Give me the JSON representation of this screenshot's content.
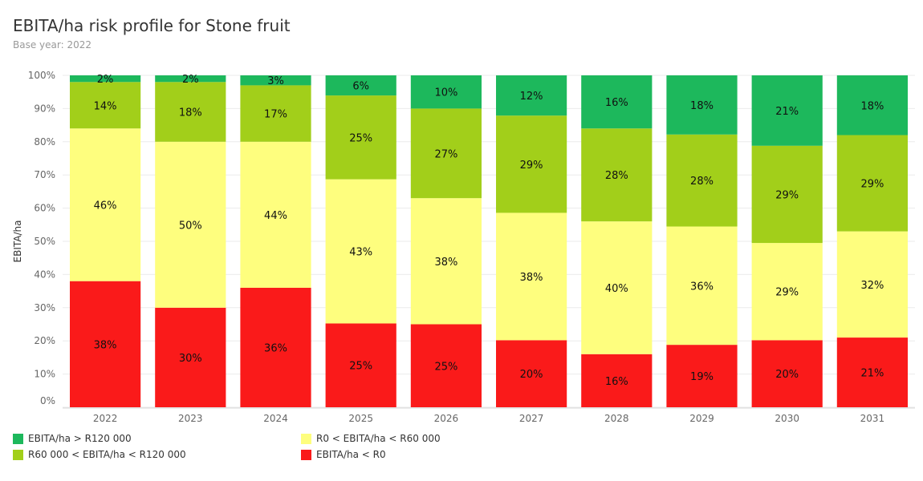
{
  "title": "EBITA/ha risk profile for Stone fruit",
  "subtitle": "Base year: 2022",
  "colors": {
    "band_above_120k": "#1db85c",
    "band_60k_120k": "#a2cf1a",
    "band_0_60k": "#fefe7e",
    "band_below_0": "#fa1a1a",
    "gridline": "#ebebeb",
    "axis_text": "#666666"
  },
  "legend": [
    {
      "label": "EBITA/ha > R120 000",
      "color": "#1db85c"
    },
    {
      "label": "R0 < EBITA/ha < R60 000",
      "color": "#fefe7e"
    },
    {
      "label": "R60 000 < EBITA/ha < R120 000",
      "color": "#a2cf1a"
    },
    {
      "label": "EBITA/ha < R0",
      "color": "#fa1a1a"
    }
  ],
  "chart_data": {
    "type": "bar",
    "stacked": true,
    "normalized": true,
    "ylabel": "EBITA/ha",
    "xlabel": "",
    "ylim": [
      0,
      100
    ],
    "yticks": [
      "0%",
      "10%",
      "20%",
      "30%",
      "40%",
      "50%",
      "60%",
      "70%",
      "80%",
      "90%",
      "100%"
    ],
    "categories": [
      "2022",
      "2023",
      "2024",
      "2025",
      "2026",
      "2027",
      "2028",
      "2029",
      "2030",
      "2031"
    ],
    "series": [
      {
        "name": "EBITA/ha < R0",
        "color": "#fa1a1a",
        "values": [
          38,
          30,
          36,
          25,
          25,
          20,
          16,
          19,
          20,
          21
        ]
      },
      {
        "name": "R0 < EBITA/ha < R60 000",
        "color": "#fefe7e",
        "values": [
          46,
          50,
          44,
          43,
          38,
          38,
          40,
          36,
          29,
          32
        ]
      },
      {
        "name": "R60 000 < EBITA/ha < R120 000",
        "color": "#a2cf1a",
        "values": [
          14,
          18,
          17,
          25,
          27,
          29,
          28,
          28,
          29,
          29
        ]
      },
      {
        "name": "EBITA/ha > R120 000",
        "color": "#1db85c",
        "values": [
          2,
          2,
          3,
          6,
          10,
          12,
          16,
          18,
          21,
          18
        ]
      }
    ]
  }
}
